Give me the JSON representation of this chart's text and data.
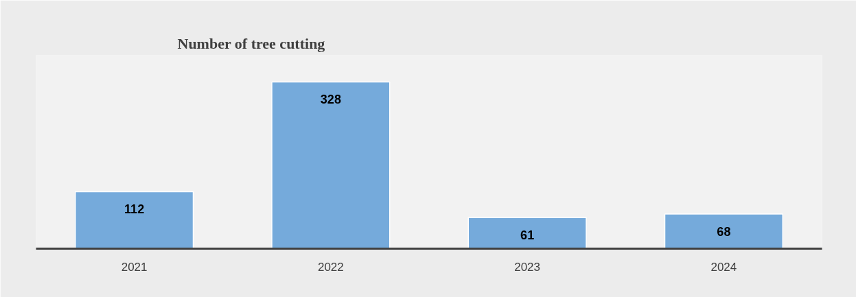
{
  "chart_data": {
    "type": "bar",
    "title": "Number of tree cutting",
    "categories": [
      "2021",
      "2022",
      "2023",
      "2024"
    ],
    "values": [
      112,
      328,
      61,
      68
    ],
    "color": "#75aadb",
    "data_labels": true
  }
}
